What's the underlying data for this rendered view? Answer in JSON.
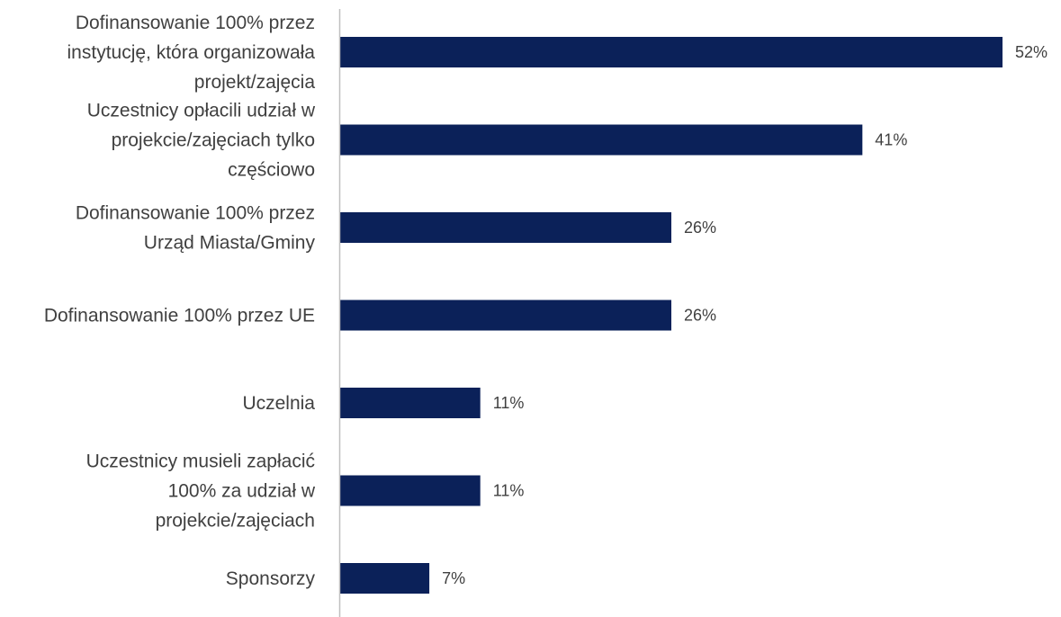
{
  "chart_data": {
    "type": "bar",
    "orientation": "horizontal",
    "categories": [
      [
        "Dofinansowanie 100% przez",
        "instytucję, która organizowała",
        "projekt/zajęcia"
      ],
      [
        "Uczestnicy opłacili udział w",
        "projekcie/zajęciach tylko",
        "częściowo"
      ],
      [
        "Dofinansowanie 100% przez",
        "Urząd Miasta/Gminy"
      ],
      [
        "Dofinansowanie 100% przez UE"
      ],
      [
        "Uczelnia"
      ],
      [
        "Uczestnicy musieli zapłacić",
        "100% za udział w",
        "projekcie/zajęciach"
      ],
      [
        "Sponsorzy"
      ]
    ],
    "values": [
      52,
      41,
      26,
      26,
      11,
      11,
      7
    ],
    "value_labels": [
      "52%",
      "41%",
      "26%",
      "26%",
      "11%",
      "11%",
      "7%"
    ],
    "unit": "%",
    "title": "",
    "xlabel": "",
    "ylabel": "",
    "xlim": [
      0,
      56
    ],
    "grid": false,
    "legend": "none",
    "colors": {
      "bar": "#0b2159",
      "axis": "#bfbfbf",
      "text": "#404040"
    }
  }
}
